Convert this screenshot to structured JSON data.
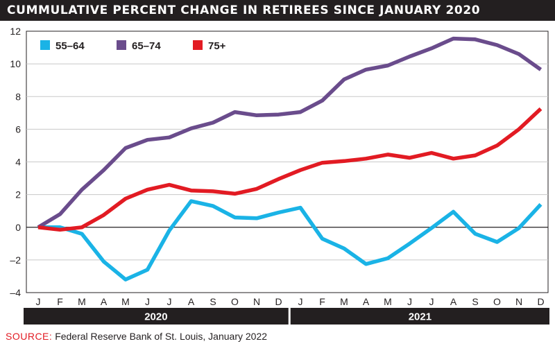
{
  "title": "CUMMULATIVE PERCENT CHANGE IN RETIREES SINCE JANUARY 2020",
  "source": {
    "label": "SOURCE:",
    "text": "Federal Reserve Bank of St. Louis, January 2022"
  },
  "chart_data": {
    "type": "line",
    "title": "CUMMULATIVE PERCENT CHANGE IN RETIREES SINCE JANUARY 2020",
    "xlabel": "",
    "ylabel": "",
    "categories": [
      "J",
      "F",
      "M",
      "A",
      "M",
      "J",
      "J",
      "A",
      "S",
      "O",
      "N",
      "D",
      "J",
      "F",
      "M",
      "A",
      "M",
      "J",
      "J",
      "A",
      "S",
      "O",
      "N",
      "D"
    ],
    "years": [
      {
        "label": "2020",
        "months": 12
      },
      {
        "label": "2021",
        "months": 12
      }
    ],
    "ylim": [
      -4,
      12
    ],
    "yticks": [
      -4,
      -2,
      0,
      2,
      4,
      6,
      8,
      10,
      12
    ],
    "grid": "horizontal",
    "zero_line": true,
    "legend_position": "top-left",
    "series": [
      {
        "name": "55–64",
        "color": "#1ab3e6",
        "values": [
          0,
          0,
          -0.4,
          -2.1,
          -3.2,
          -2.6,
          -0.2,
          1.6,
          1.3,
          0.6,
          0.55,
          0.9,
          1.2,
          -0.7,
          -1.3,
          -2.25,
          -1.9,
          -1.0,
          -0.05,
          0.95,
          -0.4,
          -0.9,
          -0.05,
          1.4
        ]
      },
      {
        "name": "65–74",
        "color": "#6a4c8c",
        "values": [
          0,
          0.8,
          2.3,
          3.5,
          4.85,
          5.35,
          5.5,
          6.05,
          6.4,
          7.05,
          6.85,
          6.9,
          7.05,
          7.75,
          9.05,
          9.65,
          9.9,
          10.45,
          10.95,
          11.55,
          11.5,
          11.15,
          10.6,
          9.65
        ]
      },
      {
        "name": "75+",
        "color": "#e21b23",
        "values": [
          0,
          -0.15,
          0,
          0.75,
          1.75,
          2.3,
          2.6,
          2.25,
          2.2,
          2.05,
          2.35,
          2.95,
          3.5,
          3.95,
          4.05,
          4.2,
          4.45,
          4.25,
          4.55,
          4.2,
          4.4,
          5.0,
          6.0,
          7.25
        ]
      }
    ]
  }
}
